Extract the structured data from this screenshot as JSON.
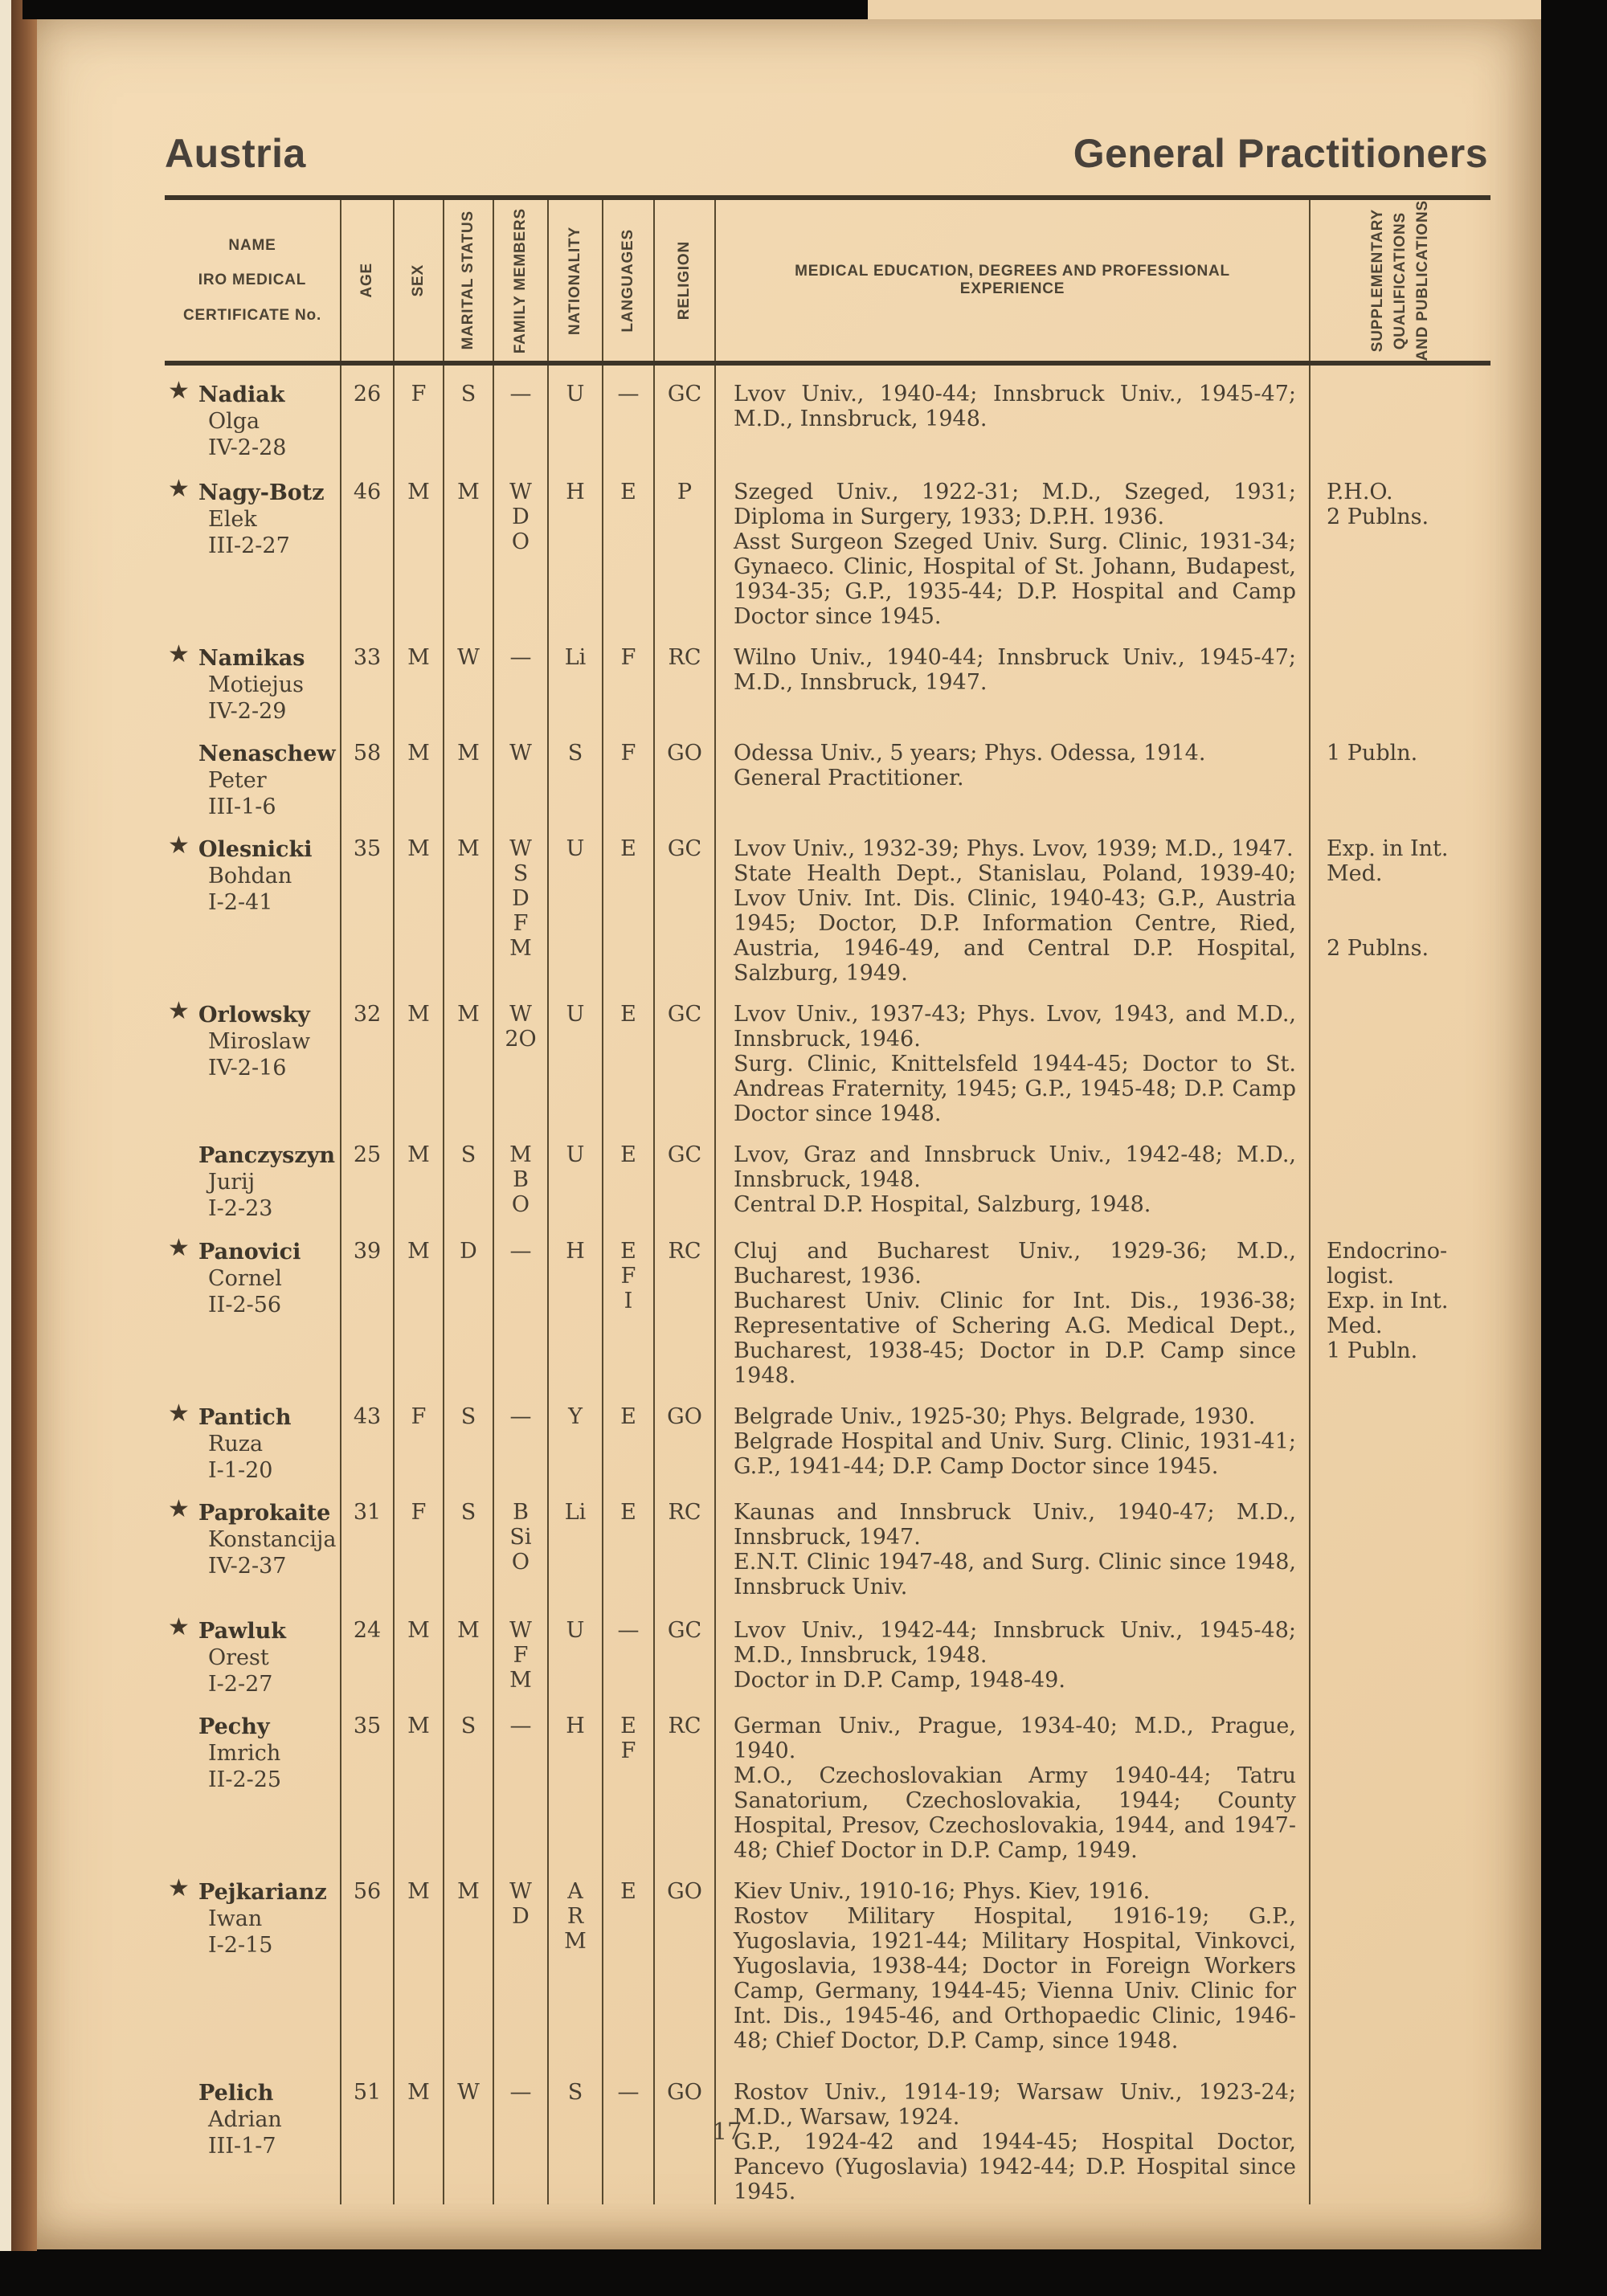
{
  "page": {
    "header_left": "Austria",
    "header_right": "General Practitioners",
    "page_number": "17"
  },
  "table": {
    "headers": {
      "name_lines": [
        "NAME",
        "IRO MEDICAL",
        "CERTIFICATE No."
      ],
      "age": "AGE",
      "sex": "SEX",
      "marital_status": "MARITAL STATUS",
      "family_members": "FAMILY MEMBERS",
      "nationality": "NATIONALITY",
      "languages": "LANGUAGES",
      "religion": "RELIGION",
      "education": "MEDICAL EDUCATION, DEGREES AND PROFESSIONAL EXPERIENCE",
      "supplementary_lines": [
        "SUPPLEMENTARY",
        "QUALIFICATIONS",
        "AND PUBLICATIONS"
      ]
    },
    "star_glyph": "★",
    "rows": [
      {
        "starred": true,
        "surname": "Nadiak",
        "given_name": "Olga",
        "certificate_no": "IV-2-28",
        "age": "26",
        "sex": "F",
        "marital_status": "S",
        "family_members": [
          "—"
        ],
        "nationality": [
          "U"
        ],
        "languages": [
          "—"
        ],
        "religion": "GC",
        "education": [
          "Lvov Univ., 1940-44; Innsbruck Univ., 1945-47; M.D., Innsbruck, 1948."
        ],
        "supplementary": []
      },
      {
        "starred": true,
        "surname": "Nagy-Botz",
        "given_name": "Elek",
        "certificate_no": "III-2-27",
        "age": "46",
        "sex": "M",
        "marital_status": "M",
        "family_members": [
          "W",
          "D",
          "O"
        ],
        "nationality": [
          "H"
        ],
        "languages": [
          "E"
        ],
        "religion": "P",
        "education": [
          "Szeged Univ., 1922-31; M.D., Szeged, 1931; Diploma in Surgery, 1933; D.P.H. 1936.",
          "Asst Surgeon Szeged Univ. Surg. Clinic, 1931-34; Gynaeco. Clinic, Hospital of St. Johann, Budapest, 1934-35; G.P., 1935-44; D.P. Hospital and Camp Doctor since 1945."
        ],
        "supplementary": [
          [
            "P.H.O.",
            "2 Publns."
          ]
        ]
      },
      {
        "starred": true,
        "surname": "Namikas",
        "given_name": "Motiejus",
        "certificate_no": "IV-2-29",
        "age": "33",
        "sex": "M",
        "marital_status": "W",
        "family_members": [
          "—"
        ],
        "nationality": [
          "Li"
        ],
        "languages": [
          "F"
        ],
        "religion": "RC",
        "education": [
          "Wilno Univ., 1940-44; Innsbruck Univ., 1945-47; M.D., Innsbruck, 1947."
        ],
        "supplementary": []
      },
      {
        "starred": false,
        "surname": "Nenaschew",
        "given_name": "Peter",
        "certificate_no": "III-1-6",
        "age": "58",
        "sex": "M",
        "marital_status": "M",
        "family_members": [
          "W"
        ],
        "nationality": [
          "S"
        ],
        "languages": [
          "F"
        ],
        "religion": "GO",
        "education": [
          "Odessa Univ., 5 years; Phys. Odessa, 1914.",
          "General Practitioner."
        ],
        "supplementary": [
          [
            "1 Publn."
          ]
        ]
      },
      {
        "starred": true,
        "surname": "Olesnicki",
        "given_name": "Bohdan",
        "certificate_no": "I-2-41",
        "age": "35",
        "sex": "M",
        "marital_status": "M",
        "family_members": [
          "W",
          "S",
          "D",
          "F",
          "M"
        ],
        "nationality": [
          "U"
        ],
        "languages": [
          "E"
        ],
        "religion": "GC",
        "education": [
          "Lvov Univ., 1932-39; Phys. Lvov, 1939; M.D., 1947.",
          "State Health Dept., Stanislau, Poland, 1939-40; Lvov Univ. Int. Dis. Clinic, 1940-43; G.P., Austria 1945; Doctor, D.P. Information Centre, Ried, Austria, 1946-49, and Central D.P. Hospital, Salzburg, 1949."
        ],
        "supplementary": [
          [
            "Exp. in Int.",
            "Med."
          ],
          [
            "2 Publns."
          ]
        ]
      },
      {
        "starred": true,
        "surname": "Orlowsky",
        "given_name": "Miroslaw",
        "certificate_no": "IV-2-16",
        "age": "32",
        "sex": "M",
        "marital_status": "M",
        "family_members": [
          "W",
          "2O"
        ],
        "nationality": [
          "U"
        ],
        "languages": [
          "E"
        ],
        "religion": "GC",
        "education": [
          "Lvov Univ., 1937-43; Phys. Lvov, 1943, and M.D., Innsbruck, 1946.",
          "Surg. Clinic, Knittelsfeld 1944-45; Doctor to St. Andreas Fraternity, 1945; G.P., 1945-48; D.P. Camp Doctor since 1948."
        ],
        "supplementary": []
      },
      {
        "starred": false,
        "surname": "Panczyszyn",
        "given_name": "Jurij",
        "certificate_no": "I-2-23",
        "age": "25",
        "sex": "M",
        "marital_status": "S",
        "family_members": [
          "M",
          "B",
          "O"
        ],
        "nationality": [
          "U"
        ],
        "languages": [
          "E"
        ],
        "religion": "GC",
        "education": [
          "Lvov, Graz and Innsbruck Univ., 1942-48; M.D., Innsbruck, 1948.",
          "Central D.P. Hospital, Salzburg, 1948."
        ],
        "supplementary": []
      },
      {
        "starred": true,
        "surname": "Panovici",
        "given_name": "Cornel",
        "certificate_no": "II-2-56",
        "age": "39",
        "sex": "M",
        "marital_status": "D",
        "family_members": [
          "—"
        ],
        "nationality": [
          "H"
        ],
        "languages": [
          "E",
          "F",
          "I"
        ],
        "religion": "RC",
        "education": [
          "Cluj and Bucharest Univ., 1929-36; M.D., Bucharest, 1936.",
          "Bucharest Univ. Clinic for Int. Dis., 1936-38; Representative of Schering A.G. Medical Dept., Bucharest, 1938-45; Doctor in D.P. Camp since 1948."
        ],
        "supplementary": [
          [
            "Endocrino-",
            "logist.",
            "Exp. in Int.",
            "Med.",
            "1 Publn."
          ]
        ]
      },
      {
        "starred": true,
        "surname": "Pantich",
        "given_name": "Ruza",
        "certificate_no": "I-1-20",
        "age": "43",
        "sex": "F",
        "marital_status": "S",
        "family_members": [
          "—"
        ],
        "nationality": [
          "Y"
        ],
        "languages": [
          "E"
        ],
        "religion": "GO",
        "education": [
          "Belgrade Univ., 1925-30; Phys. Belgrade, 1930.",
          "Belgrade Hospital and Univ. Surg. Clinic, 1931-41; G.P., 1941-44; D.P. Camp Doctor since 1945."
        ],
        "supplementary": []
      },
      {
        "starred": true,
        "surname": "Paprokaite",
        "given_name": "Konstancija",
        "certificate_no": "IV-2-37",
        "age": "31",
        "sex": "F",
        "marital_status": "S",
        "family_members": [
          "B",
          "Si",
          "O"
        ],
        "nationality": [
          "Li"
        ],
        "languages": [
          "E"
        ],
        "religion": "RC",
        "education": [
          "Kaunas and Innsbruck Univ., 1940-47; M.D., Innsbruck, 1947.",
          "E.N.T. Clinic 1947-48, and Surg. Clinic since 1948, Innsbruck Univ."
        ],
        "supplementary": []
      },
      {
        "starred": true,
        "surname": "Pawluk",
        "given_name": "Orest",
        "certificate_no": "I-2-27",
        "age": "24",
        "sex": "M",
        "marital_status": "M",
        "family_members": [
          "W",
          "F",
          "M"
        ],
        "nationality": [
          "U"
        ],
        "languages": [
          "—"
        ],
        "religion": "GC",
        "education": [
          "Lvov Univ., 1942-44; Innsbruck Univ., 1945-48; M.D., Innsbruck, 1948.",
          "Doctor in D.P. Camp, 1948-49."
        ],
        "supplementary": []
      },
      {
        "starred": false,
        "surname": "Pechy",
        "given_name": "Imrich",
        "certificate_no": "II-2-25",
        "age": "35",
        "sex": "M",
        "marital_status": "S",
        "family_members": [
          "—"
        ],
        "nationality": [
          "H"
        ],
        "languages": [
          "E",
          "F"
        ],
        "religion": "RC",
        "education": [
          "German Univ., Prague, 1934-40; M.D., Prague, 1940.",
          "M.O., Czechoslovakian Army 1940-44; Tatru Sanatorium, Czechoslovakia, 1944; County Hospital, Presov, Czechoslovakia, 1944, and 1947-48; Chief Doctor in D.P. Camp, 1949."
        ],
        "supplementary": []
      },
      {
        "starred": true,
        "surname": "Pejkarianz",
        "given_name": "Iwan",
        "certificate_no": "I-2-15",
        "age": "56",
        "sex": "M",
        "marital_status": "M",
        "family_members": [
          "W",
          "D"
        ],
        "nationality": [
          "A",
          "R",
          "M"
        ],
        "languages": [
          "E"
        ],
        "religion": "GO",
        "education": [
          "Kiev Univ., 1910-16; Phys. Kiev, 1916.",
          "Rostov Military Hospital, 1916-19; G.P., Yugoslavia, 1921-44; Military Hospital, Vinkovci, Yugoslavia, 1938-44; Doctor in Foreign Workers Camp, Germany, 1944-45; Vienna Univ. Clinic for Int. Dis., 1945-46, and Orthopaedic Clinic, 1946-48; Chief Doctor, D.P. Camp, since 1948."
        ],
        "supplementary": []
      },
      {
        "starred": false,
        "surname": "Pelich",
        "given_name": "Adrian",
        "certificate_no": "III-1-7",
        "age": "51",
        "sex": "M",
        "marital_status": "W",
        "family_members": [
          "—"
        ],
        "nationality": [
          "S"
        ],
        "languages": [
          "—"
        ],
        "religion": "GO",
        "education": [
          "Rostov Univ., 1914-19; Warsaw Univ., 1923-24; M.D., Warsaw, 1924.",
          "G.P., 1924-42 and 1944-45; Hospital Doctor, Pancevo (Yugoslavia) 1942-44; D.P. Hospital since 1945."
        ],
        "supplementary": []
      }
    ]
  }
}
